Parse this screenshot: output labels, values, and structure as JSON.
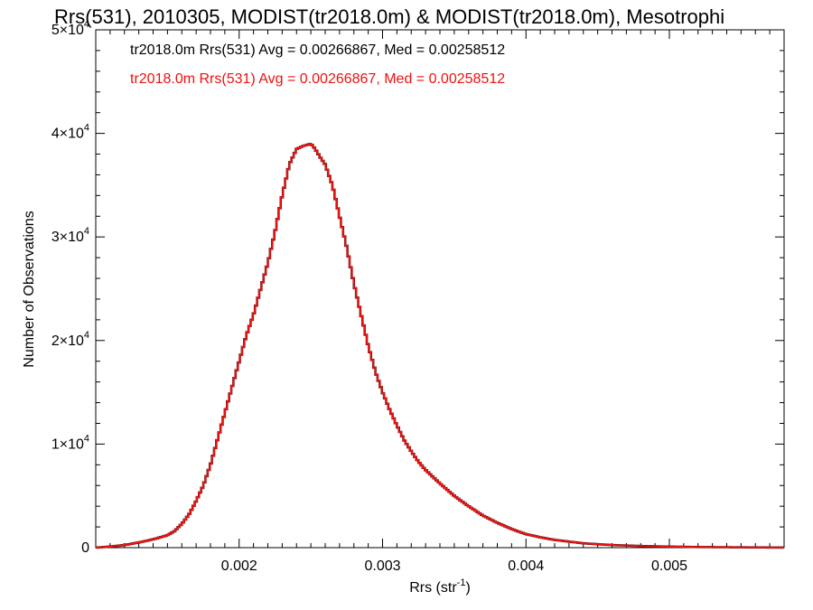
{
  "chart_data": {
    "type": "line",
    "title": "Rrs(531), 2010305, MODIST(tr2018.0m) & MODIST(tr2018.0m), Mesotrophi",
    "xlabel": "Rrs (str",
    "xlabel_sup": "-1",
    "xlabel_close": ")",
    "ylabel": "Number of Observations",
    "xlim": [
      0.001,
      0.0058
    ],
    "ylim": [
      0,
      50000
    ],
    "grid": false,
    "legend_position": "top-left",
    "x_ticks": [
      {
        "value": 0.002,
        "label": "0.002"
      },
      {
        "value": 0.003,
        "label": "0.003"
      },
      {
        "value": 0.004,
        "label": "0.004"
      },
      {
        "value": 0.005,
        "label": "0.005"
      }
    ],
    "y_ticks": [
      {
        "value": 0,
        "label": "0",
        "sup": ""
      },
      {
        "value": 10000,
        "label": "1×10",
        "sup": "4"
      },
      {
        "value": 20000,
        "label": "2×10",
        "sup": "4"
      },
      {
        "value": 30000,
        "label": "3×10",
        "sup": "4"
      },
      {
        "value": 40000,
        "label": "4×10",
        "sup": "4"
      },
      {
        "value": 50000,
        "label": "5×10",
        "sup": "4"
      }
    ],
    "series": [
      {
        "name": "tr2018.0m Rrs(531) Avg = 0.00266867, Med = 0.00258512",
        "color": "#000000",
        "x": [
          0.001,
          0.0011,
          0.0012,
          0.0013,
          0.0014,
          0.0015,
          0.00155,
          0.0016,
          0.00165,
          0.0017,
          0.00175,
          0.0018,
          0.00185,
          0.0019,
          0.00195,
          0.002,
          0.00205,
          0.0021,
          0.00215,
          0.0022,
          0.00225,
          0.0023,
          0.00235,
          0.0024,
          0.00245,
          0.0025,
          0.00253,
          0.00256,
          0.0026,
          0.00265,
          0.0027,
          0.00275,
          0.0028,
          0.00285,
          0.0029,
          0.00295,
          0.003,
          0.00305,
          0.0031,
          0.00315,
          0.0032,
          0.00325,
          0.0033,
          0.0034,
          0.0035,
          0.0036,
          0.0037,
          0.0038,
          0.0039,
          0.004,
          0.0041,
          0.0042,
          0.0044,
          0.0046,
          0.0048,
          0.005,
          0.0052,
          0.0054,
          0.0056,
          0.0058
        ],
        "y": [
          0,
          100,
          250,
          500,
          800,
          1200,
          1600,
          2300,
          3200,
          4500,
          6000,
          8000,
          10500,
          13000,
          15500,
          18000,
          20500,
          22500,
          25000,
          27500,
          30500,
          34000,
          37000,
          38500,
          38800,
          39000,
          38500,
          37800,
          37000,
          35000,
          32000,
          29000,
          25500,
          22500,
          19500,
          17000,
          15000,
          13300,
          11800,
          10400,
          9300,
          8300,
          7500,
          6200,
          5000,
          4000,
          3100,
          2400,
          1800,
          1300,
          1000,
          750,
          420,
          250,
          160,
          100,
          60,
          40,
          20,
          10
        ]
      },
      {
        "name": "tr2018.0m Rrs(531) Avg = 0.00266867, Med = 0.00258512",
        "color": "#ee1111",
        "x": [
          0.001,
          0.0011,
          0.0012,
          0.0013,
          0.0014,
          0.0015,
          0.00155,
          0.0016,
          0.00165,
          0.0017,
          0.00175,
          0.0018,
          0.00185,
          0.0019,
          0.00195,
          0.002,
          0.00205,
          0.0021,
          0.00215,
          0.0022,
          0.00225,
          0.0023,
          0.00235,
          0.0024,
          0.00245,
          0.0025,
          0.00253,
          0.00256,
          0.0026,
          0.00265,
          0.0027,
          0.00275,
          0.0028,
          0.00285,
          0.0029,
          0.00295,
          0.003,
          0.00305,
          0.0031,
          0.00315,
          0.0032,
          0.00325,
          0.0033,
          0.0034,
          0.0035,
          0.0036,
          0.0037,
          0.0038,
          0.0039,
          0.004,
          0.0041,
          0.0042,
          0.0044,
          0.0046,
          0.0048,
          0.005,
          0.0052,
          0.0054,
          0.0056,
          0.0058
        ],
        "y": [
          0,
          100,
          250,
          500,
          800,
          1200,
          1600,
          2300,
          3200,
          4500,
          6000,
          8000,
          10500,
          13000,
          15500,
          18000,
          20500,
          22500,
          25000,
          27500,
          30500,
          34000,
          37000,
          38500,
          38800,
          39000,
          38500,
          37800,
          37000,
          35000,
          32000,
          29000,
          25500,
          22500,
          19500,
          17000,
          15000,
          13300,
          11800,
          10400,
          9300,
          8300,
          7500,
          6200,
          5000,
          4000,
          3100,
          2400,
          1800,
          1300,
          1000,
          750,
          420,
          250,
          160,
          100,
          60,
          40,
          20,
          10
        ]
      }
    ]
  }
}
